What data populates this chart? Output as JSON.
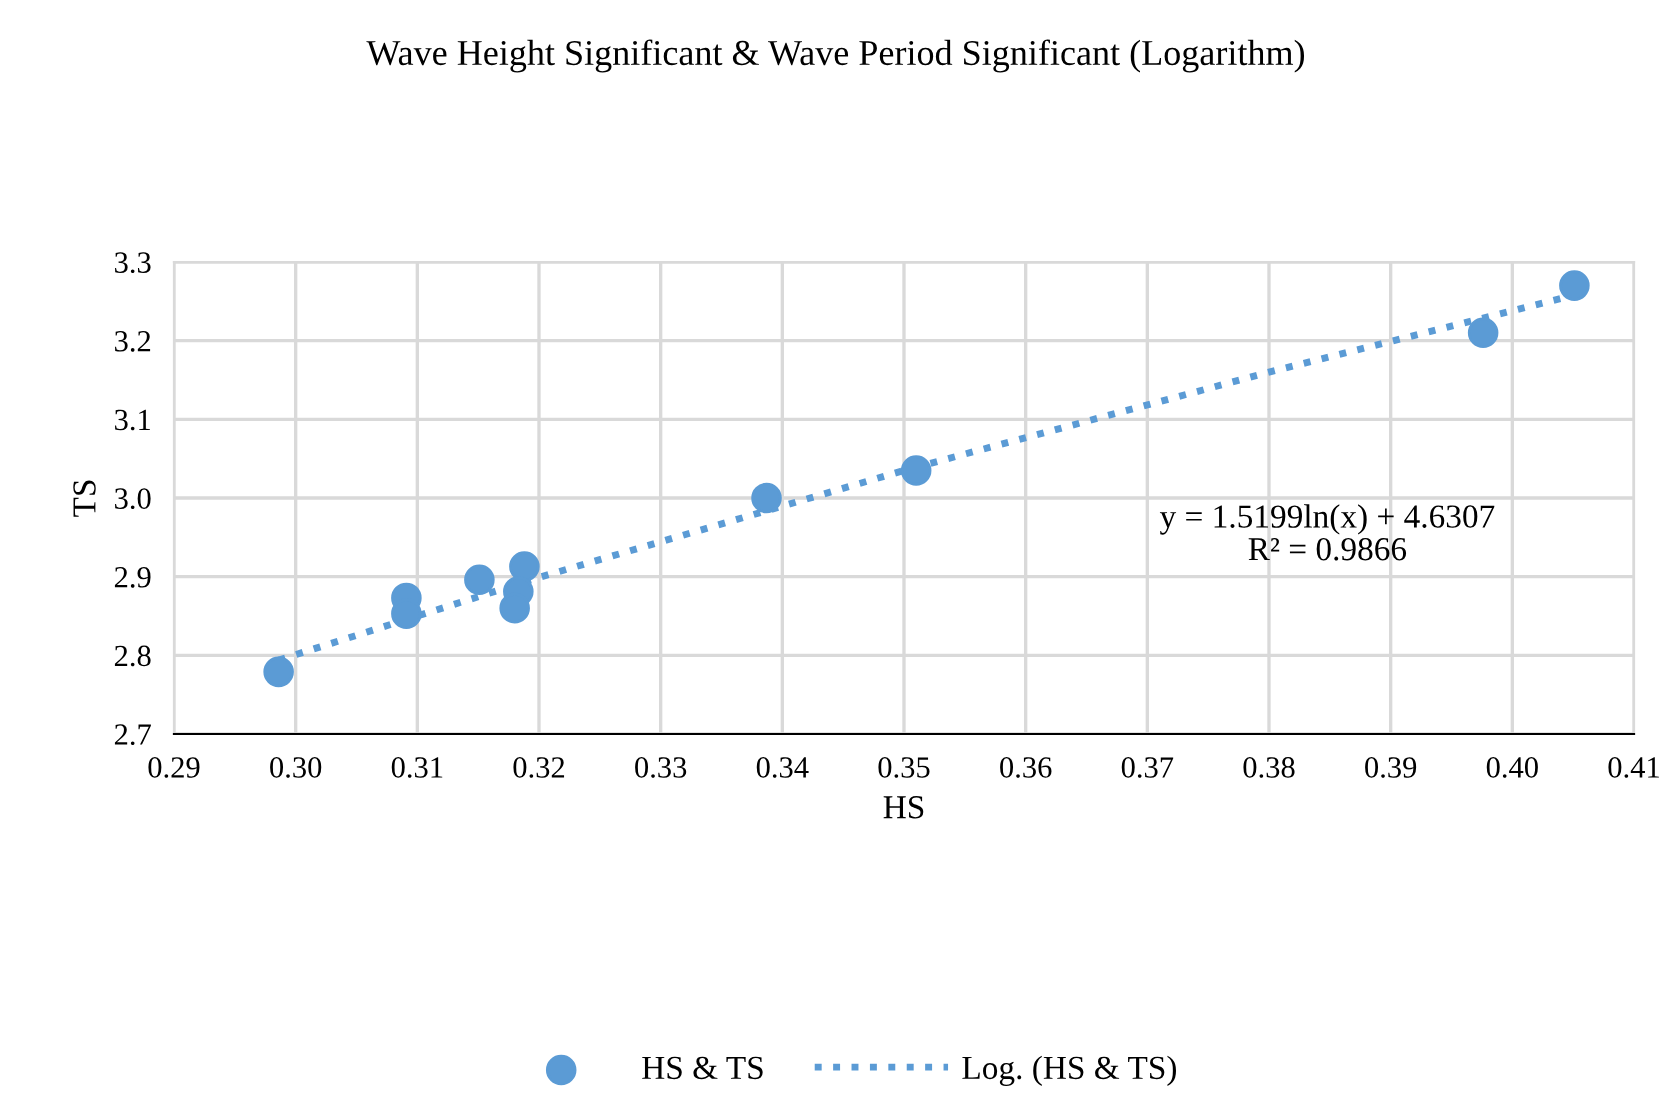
{
  "chart_data": {
    "type": "scatter",
    "title": "Wave Height Significant & Wave Period Significant (Logarithm)",
    "xlabel": "HS",
    "ylabel": "TS",
    "xlim": [
      0.29,
      0.41
    ],
    "xticks": [
      0.29,
      {
        "value": 0.3,
        "label": "0.30"
      },
      0.31,
      0.32,
      0.33,
      0.34,
      0.35,
      0.36,
      0.37,
      0.38,
      0.39,
      {
        "value": 0.4,
        "label": "0.40"
      },
      0.41
    ],
    "ylim": [
      2.7,
      3.3
    ],
    "yticks": [
      2.7,
      2.8,
      2.9,
      {
        "value": 3.0,
        "label": "3.0"
      },
      3.1,
      3.2,
      3.3
    ],
    "grid": true,
    "legend": "bottom",
    "series": [
      {
        "name": "HS & TS",
        "marker": "circle",
        "color": "#5b9bd5",
        "x": [
          0.2986,
          0.3091,
          0.3091,
          0.3151,
          0.3188,
          0.3183,
          0.318,
          0.3387,
          0.351,
          0.3976,
          0.4051
        ],
        "values": [
          2.779,
          2.873,
          2.853,
          2.896,
          2.913,
          2.881,
          2.86,
          3.0,
          3.035,
          3.21,
          3.27
        ]
      },
      {
        "name": "Log. (HS & TS)",
        "type": "line",
        "marker": "none",
        "line_style": "dotted",
        "color": "#5b9bd5",
        "x": [
          0.2986,
          0.32,
          0.35,
          0.38,
          0.4051
        ],
        "values": [
          2.794,
          2.899,
          3.035,
          3.16,
          3.258
        ]
      }
    ],
    "annotations": [
      "y = 1.5199ln(x) + 4.6307\nR² = 0.9866"
    ]
  }
}
